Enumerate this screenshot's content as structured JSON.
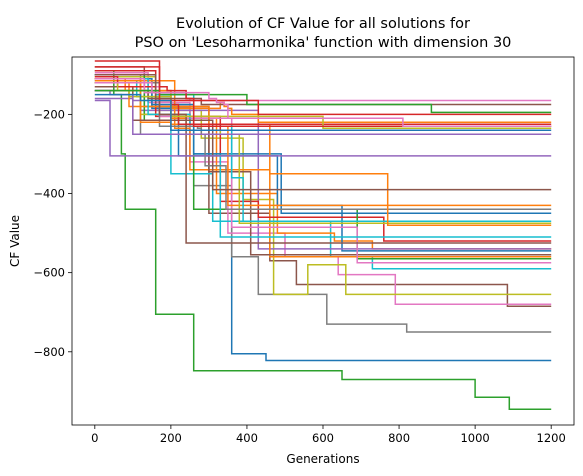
{
  "chart_data": {
    "type": "line",
    "title_line1": "Evolution of CF Value for all solutions for",
    "title_line2": "PSO on 'Lesoharmonika' function with dimension 30",
    "xlabel": "Generations",
    "ylabel": "CF Value",
    "xlim": [
      -60,
      1260
    ],
    "ylim": [
      -985,
      -55
    ],
    "xticks": [
      0,
      200,
      400,
      600,
      800,
      1000,
      1200
    ],
    "yticks": [
      -800,
      -600,
      -400,
      -200
    ],
    "xtick_labels": [
      "0",
      "200",
      "400",
      "600",
      "800",
      "1000",
      "1200"
    ],
    "ytick_labels": [
      "−800",
      "−600",
      "−400",
      "−200"
    ],
    "grid": false,
    "legend": "none",
    "series": [
      {
        "color": "#2ca02c",
        "steps": [
          [
            0,
            -90
          ],
          [
            50,
            -150
          ],
          [
            70,
            -300
          ],
          [
            80,
            -440
          ],
          [
            130,
            -440
          ],
          [
            160,
            -705
          ],
          [
            250,
            -705
          ],
          [
            260,
            -848
          ],
          [
            640,
            -848
          ],
          [
            650,
            -870
          ],
          [
            990,
            -870
          ],
          [
            1000,
            -915
          ],
          [
            1080,
            -915
          ],
          [
            1090,
            -945
          ],
          [
            1200,
            -945
          ]
        ]
      },
      {
        "color": "#1f77b4",
        "steps": [
          [
            0,
            -110
          ],
          [
            150,
            -185
          ],
          [
            250,
            -250
          ],
          [
            360,
            -805
          ],
          [
            440,
            -805
          ],
          [
            450,
            -822
          ],
          [
            1200,
            -822
          ]
        ]
      },
      {
        "color": "#7f7f7f",
        "steps": [
          [
            0,
            -100
          ],
          [
            120,
            -250
          ],
          [
            260,
            -380
          ],
          [
            360,
            -560
          ],
          [
            420,
            -560
          ],
          [
            430,
            -655
          ],
          [
            600,
            -655
          ],
          [
            610,
            -730
          ],
          [
            810,
            -730
          ],
          [
            820,
            -750
          ],
          [
            1200,
            -750
          ]
        ]
      },
      {
        "color": "#8c564b",
        "steps": [
          [
            0,
            -80
          ],
          [
            130,
            -180
          ],
          [
            250,
            -230
          ],
          [
            300,
            -450
          ],
          [
            440,
            -450
          ],
          [
            460,
            -570
          ],
          [
            530,
            -630
          ],
          [
            1080,
            -630
          ],
          [
            1085,
            -685
          ],
          [
            1200,
            -685
          ]
        ]
      },
      {
        "color": "#e377c2",
        "steps": [
          [
            0,
            -95
          ],
          [
            140,
            -170
          ],
          [
            250,
            -320
          ],
          [
            350,
            -500
          ],
          [
            410,
            -500
          ],
          [
            500,
            -560
          ],
          [
            630,
            -560
          ],
          [
            640,
            -605
          ],
          [
            780,
            -605
          ],
          [
            790,
            -680
          ],
          [
            1200,
            -680
          ]
        ]
      },
      {
        "color": "#bcbd22",
        "steps": [
          [
            0,
            -105
          ],
          [
            160,
            -190
          ],
          [
            280,
            -260
          ],
          [
            390,
            -415
          ],
          [
            440,
            -415
          ],
          [
            470,
            -655
          ],
          [
            550,
            -655
          ],
          [
            560,
            -580
          ],
          [
            650,
            -580
          ],
          [
            660,
            -655
          ],
          [
            1200,
            -655
          ]
        ]
      },
      {
        "color": "#17becf",
        "steps": [
          [
            0,
            -115
          ],
          [
            110,
            -155
          ],
          [
            200,
            -350
          ],
          [
            290,
            -350
          ],
          [
            310,
            -470
          ],
          [
            600,
            -470
          ],
          [
            620,
            -560
          ],
          [
            720,
            -560
          ],
          [
            730,
            -590
          ],
          [
            1200,
            -590
          ]
        ]
      },
      {
        "color": "#ff7f0e",
        "steps": [
          [
            0,
            -140
          ],
          [
            200,
            -210
          ],
          [
            320,
            -400
          ],
          [
            470,
            -400
          ],
          [
            480,
            -500
          ],
          [
            620,
            -500
          ],
          [
            630,
            -520
          ],
          [
            720,
            -520
          ],
          [
            730,
            -540
          ],
          [
            1200,
            -540
          ]
        ]
      },
      {
        "color": "#1f77b4",
        "steps": [
          [
            0,
            -120
          ],
          [
            130,
            -200
          ],
          [
            220,
            -305
          ],
          [
            370,
            -305
          ],
          [
            480,
            -430
          ],
          [
            640,
            -430
          ],
          [
            650,
            -545
          ],
          [
            1200,
            -545
          ]
        ]
      },
      {
        "color": "#9467bd",
        "steps": [
          [
            0,
            -160
          ],
          [
            100,
            -165
          ],
          [
            120,
            -190
          ],
          [
            420,
            -190
          ],
          [
            430,
            -540
          ],
          [
            1200,
            -540
          ]
        ]
      },
      {
        "color": "#ff7f0e",
        "steps": [
          [
            0,
            -115
          ],
          [
            210,
            -235
          ],
          [
            250,
            -340
          ],
          [
            450,
            -340
          ],
          [
            460,
            -560
          ],
          [
            1200,
            -560
          ]
        ]
      },
      {
        "color": "#d62728",
        "steps": [
          [
            0,
            -90
          ],
          [
            160,
            -205
          ],
          [
            330,
            -420
          ],
          [
            420,
            -420
          ],
          [
            430,
            -460
          ],
          [
            750,
            -460
          ],
          [
            760,
            -520
          ],
          [
            1200,
            -520
          ]
        ]
      },
      {
        "color": "#2ca02c",
        "steps": [
          [
            0,
            -100
          ],
          [
            130,
            -215
          ],
          [
            260,
            -440
          ],
          [
            680,
            -440
          ],
          [
            690,
            -565
          ],
          [
            1200,
            -565
          ]
        ]
      },
      {
        "color": "#8c564b",
        "steps": [
          [
            0,
            -100
          ],
          [
            160,
            -180
          ],
          [
            300,
            -345
          ],
          [
            400,
            -345
          ],
          [
            410,
            -555
          ],
          [
            1200,
            -555
          ]
        ]
      },
      {
        "color": "#e377c2",
        "steps": [
          [
            0,
            -130
          ],
          [
            170,
            -205
          ],
          [
            240,
            -210
          ],
          [
            360,
            -485
          ],
          [
            680,
            -485
          ],
          [
            690,
            -575
          ],
          [
            1200,
            -575
          ]
        ]
      },
      {
        "color": "#17becf",
        "steps": [
          [
            0,
            -100
          ],
          [
            160,
            -150
          ],
          [
            260,
            -300
          ],
          [
            320,
            -300
          ],
          [
            330,
            -510
          ],
          [
            1200,
            -510
          ]
        ]
      },
      {
        "color": "#1f77b4",
        "steps": [
          [
            0,
            -140
          ],
          [
            150,
            -175
          ],
          [
            260,
            -300
          ],
          [
            480,
            -300
          ],
          [
            490,
            -450
          ],
          [
            1200,
            -450
          ]
        ]
      },
      {
        "color": "#ff7f0e",
        "steps": [
          [
            0,
            -120
          ],
          [
            90,
            -180
          ],
          [
            300,
            -230
          ],
          [
            340,
            -230
          ],
          [
            350,
            -430
          ],
          [
            1200,
            -430
          ]
        ]
      },
      {
        "color": "#bcbd22",
        "steps": [
          [
            0,
            -110
          ],
          [
            120,
            -200
          ],
          [
            240,
            -240
          ],
          [
            330,
            -250
          ],
          [
            380,
            -475
          ],
          [
            1200,
            -475
          ]
        ]
      },
      {
        "color": "#17becf",
        "steps": [
          [
            0,
            -110
          ],
          [
            140,
            -200
          ],
          [
            250,
            -225
          ],
          [
            360,
            -360
          ],
          [
            380,
            -360
          ],
          [
            390,
            -470
          ],
          [
            1200,
            -470
          ]
        ]
      },
      {
        "color": "#7f7f7f",
        "steps": [
          [
            0,
            -120
          ],
          [
            170,
            -230
          ],
          [
            270,
            -235
          ],
          [
            280,
            -250
          ],
          [
            290,
            -330
          ],
          [
            340,
            -330
          ],
          [
            345,
            -440
          ],
          [
            1200,
            -440
          ]
        ]
      },
      {
        "color": "#8c564b",
        "steps": [
          [
            0,
            -140
          ],
          [
            140,
            -160
          ],
          [
            170,
            -200
          ],
          [
            230,
            -200
          ],
          [
            240,
            -525
          ],
          [
            1200,
            -525
          ]
        ]
      },
      {
        "color": "#ff7f0e",
        "steps": [
          [
            0,
            -110
          ],
          [
            120,
            -220
          ],
          [
            200,
            -225
          ],
          [
            450,
            -225
          ],
          [
            460,
            -350
          ],
          [
            760,
            -350
          ],
          [
            770,
            -480
          ],
          [
            1200,
            -480
          ]
        ]
      },
      {
        "color": "#8c564b",
        "steps": [
          [
            0,
            -130
          ],
          [
            100,
            -215
          ],
          [
            300,
            -215
          ],
          [
            310,
            -390
          ],
          [
            1200,
            -390
          ]
        ]
      },
      {
        "color": "#ff7f0e",
        "steps": [
          [
            0,
            -110
          ],
          [
            80,
            -140
          ],
          [
            200,
            -185
          ],
          [
            320,
            -185
          ],
          [
            330,
            -170
          ],
          [
            340,
            -180
          ],
          [
            350,
            -185
          ],
          [
            360,
            -200
          ],
          [
            420,
            -200
          ],
          [
            430,
            -220
          ],
          [
            1200,
            -220
          ]
        ]
      },
      {
        "color": "#d62728",
        "steps": [
          [
            0,
            -105
          ],
          [
            60,
            -130
          ],
          [
            160,
            -165
          ],
          [
            200,
            -175
          ],
          [
            220,
            -225
          ],
          [
            1200,
            -225
          ]
        ]
      },
      {
        "color": "#bcbd22",
        "steps": [
          [
            0,
            -120
          ],
          [
            60,
            -140
          ],
          [
            90,
            -155
          ],
          [
            200,
            -205
          ],
          [
            590,
            -205
          ],
          [
            600,
            -235
          ],
          [
            1200,
            -235
          ]
        ]
      },
      {
        "color": "#9467bd",
        "steps": [
          [
            0,
            -140
          ],
          [
            40,
            -150
          ],
          [
            100,
            -250
          ],
          [
            1200,
            -250
          ]
        ]
      },
      {
        "color": "#9467bd",
        "steps": [
          [
            0,
            -165
          ],
          [
            30,
            -165
          ],
          [
            40,
            -305
          ],
          [
            1200,
            -305
          ]
        ]
      },
      {
        "color": "#e377c2",
        "steps": [
          [
            0,
            -110
          ],
          [
            130,
            -145
          ],
          [
            240,
            -160
          ],
          [
            250,
            -165
          ],
          [
            1200,
            -165
          ]
        ]
      },
      {
        "color": "#8c564b",
        "steps": [
          [
            0,
            -100
          ],
          [
            160,
            -160
          ],
          [
            280,
            -175
          ],
          [
            1200,
            -175
          ]
        ]
      },
      {
        "color": "#2ca02c",
        "steps": [
          [
            0,
            -140
          ],
          [
            170,
            -150
          ],
          [
            400,
            -175
          ],
          [
            880,
            -175
          ],
          [
            885,
            -195
          ],
          [
            1200,
            -195
          ]
        ]
      },
      {
        "color": "#d62728",
        "steps": [
          [
            0,
            -80
          ],
          [
            170,
            -165
          ],
          [
            420,
            -165
          ],
          [
            430,
            -200
          ],
          [
            1200,
            -200
          ]
        ]
      },
      {
        "color": "#d62728",
        "steps": [
          [
            0,
            -65
          ],
          [
            170,
            -130
          ],
          [
            190,
            -140
          ],
          [
            240,
            -160
          ],
          [
            260,
            -230
          ],
          [
            1200,
            -230
          ]
        ]
      },
      {
        "color": "#e377c2",
        "steps": [
          [
            0,
            -120
          ],
          [
            150,
            -145
          ],
          [
            300,
            -160
          ],
          [
            320,
            -170
          ],
          [
            340,
            -175
          ],
          [
            350,
            -210
          ],
          [
            800,
            -210
          ],
          [
            810,
            -230
          ],
          [
            1200,
            -230
          ]
        ]
      },
      {
        "color": "#1f77b4",
        "steps": [
          [
            0,
            -150
          ],
          [
            120,
            -165
          ],
          [
            200,
            -240
          ],
          [
            1200,
            -240
          ]
        ]
      }
    ]
  }
}
